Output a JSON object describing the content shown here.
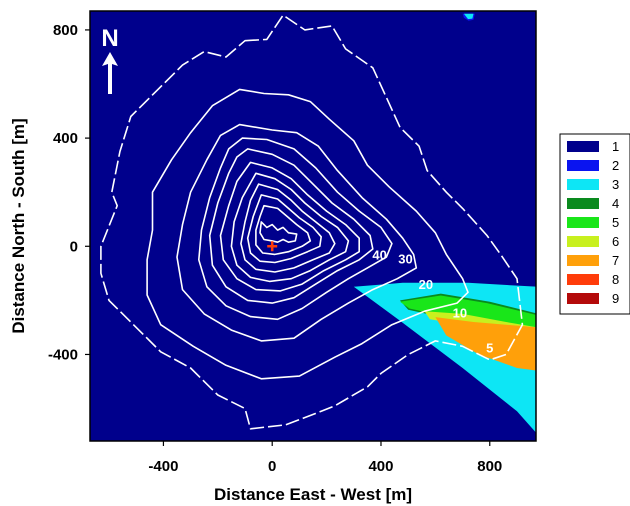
{
  "chart_data": {
    "type": "heatmap",
    "xlabel": "Distance East - West [m]",
    "ylabel": "Distance North - South [m]",
    "xlim": [
      -670,
      970
    ],
    "ylim": [
      -720,
      870
    ],
    "xticks": [
      -400,
      0,
      400,
      800
    ],
    "yticks": [
      800,
      400,
      0,
      -400
    ],
    "background_class": 1,
    "north_label": "N",
    "vent": {
      "x": 0,
      "y": 0
    },
    "contour_labels": [
      {
        "text": "40",
        "x": 395,
        "y": -30
      },
      {
        "text": "30",
        "x": 490,
        "y": -45
      },
      {
        "text": "20",
        "x": 565,
        "y": -140
      },
      {
        "text": "10",
        "x": 690,
        "y": -245
      },
      {
        "text": "5",
        "x": 800,
        "y": -375
      }
    ],
    "legend": [
      {
        "label": "1",
        "color": "#00008C"
      },
      {
        "label": "2",
        "color": "#0A14F0"
      },
      {
        "label": "3",
        "color": "#0DE6F5"
      },
      {
        "label": "4",
        "color": "#0A8A1E"
      },
      {
        "label": "5",
        "color": "#19E619"
      },
      {
        "label": "6",
        "color": "#C8F01E"
      },
      {
        "label": "7",
        "color": "#FFA00A"
      },
      {
        "label": "8",
        "color": "#FF3C0A"
      },
      {
        "label": "9",
        "color": "#B40A0A"
      }
    ],
    "regions": [
      {
        "class": 3,
        "points": [
          [
            300,
            -150
          ],
          [
            480,
            -135
          ],
          [
            720,
            -135
          ],
          [
            980,
            -150
          ],
          [
            980,
            -700
          ],
          [
            900,
            -610
          ],
          [
            700,
            -450
          ],
          [
            470,
            -275
          ]
        ]
      },
      {
        "class": 4,
        "points": [
          [
            470,
            -200
          ],
          [
            620,
            -175
          ],
          [
            800,
            -205
          ],
          [
            980,
            -250
          ],
          [
            980,
            -320
          ],
          [
            840,
            -290
          ],
          [
            660,
            -270
          ],
          [
            500,
            -235
          ]
        ]
      },
      {
        "class": 5,
        "points": [
          [
            470,
            -205
          ],
          [
            620,
            -182
          ],
          [
            790,
            -210
          ],
          [
            975,
            -255
          ],
          [
            975,
            -310
          ],
          [
            830,
            -280
          ],
          [
            650,
            -262
          ],
          [
            505,
            -230
          ]
        ]
      },
      {
        "class": 6,
        "points": [
          [
            560,
            -240
          ],
          [
            700,
            -250
          ],
          [
            860,
            -280
          ],
          [
            975,
            -300
          ],
          [
            975,
            -330
          ],
          [
            850,
            -300
          ],
          [
            700,
            -290
          ],
          [
            580,
            -270
          ]
        ]
      },
      {
        "class": 7,
        "points": [
          [
            600,
            -262
          ],
          [
            740,
            -280
          ],
          [
            975,
            -300
          ],
          [
            975,
            -460
          ],
          [
            900,
            -450
          ],
          [
            760,
            -400
          ],
          [
            640,
            -330
          ]
        ]
      },
      {
        "class": 2,
        "points": [
          [
            700,
            860
          ],
          [
            745,
            860
          ],
          [
            740,
            838
          ],
          [
            722,
            834
          ],
          [
            705,
            845
          ]
        ]
      },
      {
        "class": 3,
        "points": [
          [
            705,
            860
          ],
          [
            740,
            860
          ],
          [
            736,
            842
          ],
          [
            720,
            840
          ]
        ]
      }
    ],
    "contours": [
      {
        "dashed": true,
        "points": [
          [
            -100,
            760
          ],
          [
            -20,
            765
          ],
          [
            40,
            855
          ],
          [
            120,
            800
          ],
          [
            220,
            815
          ],
          [
            270,
            730
          ],
          [
            370,
            660
          ],
          [
            420,
            550
          ],
          [
            470,
            440
          ],
          [
            540,
            370
          ],
          [
            570,
            280
          ],
          [
            640,
            200
          ],
          [
            700,
            140
          ],
          [
            790,
            40
          ],
          [
            840,
            -30
          ],
          [
            900,
            -120
          ],
          [
            920,
            -290
          ],
          [
            860,
            -400
          ],
          [
            800,
            -420
          ],
          [
            700,
            -370
          ],
          [
            600,
            -350
          ],
          [
            500,
            -400
          ],
          [
            400,
            -470
          ],
          [
            350,
            -520
          ],
          [
            230,
            -590
          ],
          [
            180,
            -610
          ],
          [
            50,
            -660
          ],
          [
            -80,
            -675
          ],
          [
            -100,
            -600
          ],
          [
            -200,
            -550
          ],
          [
            -300,
            -450
          ],
          [
            -410,
            -390
          ],
          [
            -500,
            -300
          ],
          [
            -600,
            -200
          ],
          [
            -630,
            -100
          ],
          [
            -630,
            0
          ],
          [
            -570,
            150
          ],
          [
            -590,
            200
          ],
          [
            -560,
            350
          ],
          [
            -520,
            480
          ],
          [
            -420,
            580
          ],
          [
            -330,
            670
          ],
          [
            -250,
            720
          ],
          [
            -170,
            700
          ],
          [
            -100,
            760
          ]
        ]
      },
      {
        "dashed": false,
        "points": [
          [
            -120,
            580
          ],
          [
            -30,
            565
          ],
          [
            60,
            560
          ],
          [
            140,
            535
          ],
          [
            210,
            470
          ],
          [
            300,
            390
          ],
          [
            350,
            300
          ],
          [
            430,
            220
          ],
          [
            530,
            130
          ],
          [
            600,
            50
          ],
          [
            640,
            -30
          ],
          [
            700,
            -120
          ],
          [
            720,
            -170
          ],
          [
            680,
            -210
          ],
          [
            560,
            -240
          ],
          [
            440,
            -290
          ],
          [
            330,
            -360
          ],
          [
            230,
            -410
          ],
          [
            100,
            -480
          ],
          [
            -40,
            -490
          ],
          [
            -170,
            -440
          ],
          [
            -290,
            -370
          ],
          [
            -410,
            -290
          ],
          [
            -460,
            -180
          ],
          [
            -460,
            -50
          ],
          [
            -440,
            60
          ],
          [
            -440,
            200
          ],
          [
            -370,
            320
          ],
          [
            -300,
            420
          ],
          [
            -220,
            520
          ],
          [
            -120,
            580
          ]
        ]
      },
      {
        "dashed": false,
        "points": [
          [
            -120,
            450
          ],
          [
            0,
            430
          ],
          [
            90,
            420
          ],
          [
            170,
            370
          ],
          [
            240,
            280
          ],
          [
            330,
            180
          ],
          [
            420,
            100
          ],
          [
            480,
            30
          ],
          [
            520,
            -30
          ],
          [
            530,
            -80
          ],
          [
            460,
            -120
          ],
          [
            370,
            -160
          ],
          [
            280,
            -210
          ],
          [
            180,
            -270
          ],
          [
            80,
            -340
          ],
          [
            -40,
            -350
          ],
          [
            -150,
            -310
          ],
          [
            -250,
            -250
          ],
          [
            -330,
            -160
          ],
          [
            -350,
            -40
          ],
          [
            -330,
            80
          ],
          [
            -300,
            200
          ],
          [
            -240,
            320
          ],
          [
            -190,
            410
          ],
          [
            -120,
            450
          ]
        ]
      },
      {
        "dashed": false,
        "points": [
          [
            -110,
            400
          ],
          [
            -20,
            395
          ],
          [
            80,
            360
          ],
          [
            160,
            290
          ],
          [
            240,
            200
          ],
          [
            320,
            130
          ],
          [
            400,
            70
          ],
          [
            440,
            10
          ],
          [
            420,
            -40
          ],
          [
            350,
            -80
          ],
          [
            280,
            -120
          ],
          [
            200,
            -170
          ],
          [
            110,
            -230
          ],
          [
            20,
            -270
          ],
          [
            -80,
            -260
          ],
          [
            -170,
            -220
          ],
          [
            -240,
            -150
          ],
          [
            -270,
            -50
          ],
          [
            -260,
            60
          ],
          [
            -230,
            180
          ],
          [
            -190,
            290
          ],
          [
            -160,
            360
          ],
          [
            -110,
            400
          ]
        ]
      },
      {
        "dashed": false,
        "points": [
          [
            -90,
            360
          ],
          [
            0,
            340
          ],
          [
            80,
            300
          ],
          [
            150,
            230
          ],
          [
            220,
            160
          ],
          [
            300,
            100
          ],
          [
            360,
            40
          ],
          [
            370,
            -10
          ],
          [
            320,
            -50
          ],
          [
            240,
            -90
          ],
          [
            160,
            -140
          ],
          [
            80,
            -190
          ],
          [
            0,
            -210
          ],
          [
            -90,
            -200
          ],
          [
            -170,
            -150
          ],
          [
            -220,
            -70
          ],
          [
            -230,
            40
          ],
          [
            -200,
            160
          ],
          [
            -160,
            270
          ],
          [
            -130,
            330
          ],
          [
            -90,
            360
          ]
        ]
      },
      {
        "dashed": false,
        "points": [
          [
            -80,
            310
          ],
          [
            0,
            290
          ],
          [
            70,
            250
          ],
          [
            130,
            190
          ],
          [
            200,
            130
          ],
          [
            270,
            80
          ],
          [
            320,
            30
          ],
          [
            320,
            -20
          ],
          [
            270,
            -50
          ],
          [
            190,
            -90
          ],
          [
            110,
            -140
          ],
          [
            30,
            -165
          ],
          [
            -60,
            -160
          ],
          [
            -130,
            -120
          ],
          [
            -180,
            -50
          ],
          [
            -190,
            40
          ],
          [
            -160,
            150
          ],
          [
            -130,
            240
          ],
          [
            -80,
            310
          ]
        ]
      },
      {
        "dashed": false,
        "points": [
          [
            -60,
            270
          ],
          [
            10,
            250
          ],
          [
            70,
            210
          ],
          [
            120,
            160
          ],
          [
            180,
            110
          ],
          [
            240,
            70
          ],
          [
            280,
            20
          ],
          [
            270,
            -20
          ],
          [
            210,
            -50
          ],
          [
            140,
            -90
          ],
          [
            70,
            -120
          ],
          [
            -10,
            -130
          ],
          [
            -80,
            -115
          ],
          [
            -130,
            -70
          ],
          [
            -150,
            0
          ],
          [
            -140,
            90
          ],
          [
            -110,
            180
          ],
          [
            -60,
            270
          ]
        ]
      },
      {
        "dashed": false,
        "points": [
          [
            -50,
            230
          ],
          [
            20,
            210
          ],
          [
            70,
            170
          ],
          [
            110,
            130
          ],
          [
            160,
            90
          ],
          [
            210,
            50
          ],
          [
            230,
            10
          ],
          [
            210,
            -25
          ],
          [
            150,
            -50
          ],
          [
            80,
            -80
          ],
          [
            10,
            -95
          ],
          [
            -60,
            -85
          ],
          [
            -100,
            -50
          ],
          [
            -115,
            10
          ],
          [
            -100,
            90
          ],
          [
            -80,
            170
          ],
          [
            -50,
            230
          ]
        ]
      },
      {
        "dashed": false,
        "points": [
          [
            -40,
            190
          ],
          [
            20,
            175
          ],
          [
            60,
            140
          ],
          [
            100,
            105
          ],
          [
            150,
            70
          ],
          [
            180,
            35
          ],
          [
            175,
            0
          ],
          [
            130,
            -20
          ],
          [
            70,
            -45
          ],
          [
            10,
            -60
          ],
          [
            -45,
            -55
          ],
          [
            -80,
            -25
          ],
          [
            -90,
            30
          ],
          [
            -70,
            110
          ],
          [
            -40,
            190
          ]
        ]
      },
      {
        "dashed": false,
        "points": [
          [
            -30,
            150
          ],
          [
            20,
            140
          ],
          [
            55,
            110
          ],
          [
            90,
            80
          ],
          [
            130,
            50
          ],
          [
            140,
            20
          ],
          [
            110,
            0
          ],
          [
            60,
            -20
          ],
          [
            10,
            -30
          ],
          [
            -35,
            -25
          ],
          [
            -60,
            5
          ],
          [
            -60,
            60
          ],
          [
            -45,
            110
          ],
          [
            -30,
            150
          ]
        ]
      },
      {
        "dashed": false,
        "points": [
          [
            -40,
            90
          ],
          [
            -20,
            70
          ],
          [
            0,
            80
          ],
          [
            20,
            60
          ],
          [
            40,
            70
          ],
          [
            60,
            50
          ],
          [
            90,
            45
          ],
          [
            85,
            20
          ],
          [
            60,
            15
          ],
          [
            40,
            25
          ],
          [
            20,
            15
          ],
          [
            0,
            20
          ],
          [
            -30,
            25
          ],
          [
            -45,
            50
          ],
          [
            -40,
            90
          ]
        ]
      }
    ]
  }
}
